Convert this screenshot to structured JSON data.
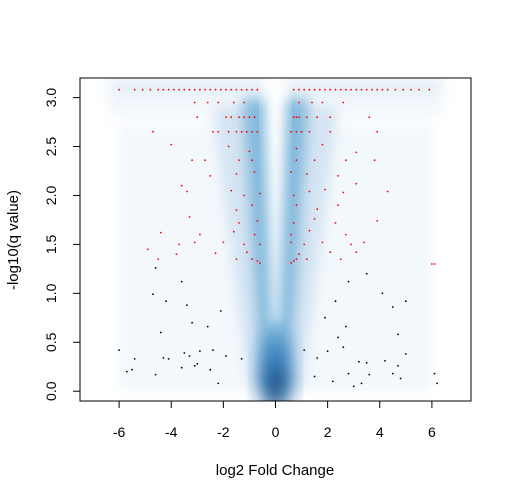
{
  "chart_data": {
    "type": "scatter",
    "title": "",
    "xlabel": "log2 Fold Change",
    "ylabel": "-log10(q value)",
    "xlim": [
      -7.5,
      7.5
    ],
    "ylim": [
      -0.1,
      3.2
    ],
    "xticks": [
      -6,
      -4,
      -2,
      0,
      2,
      4,
      6
    ],
    "xtick_labels": [
      "-6",
      "-4",
      "-2",
      "0",
      "2",
      "4",
      "6"
    ],
    "yticks": [
      0.0,
      0.5,
      1.0,
      1.5,
      2.0,
      2.5,
      3.0
    ],
    "ytick_labels": [
      "0.0",
      "0.5",
      "1.0",
      "1.5",
      "2.0",
      "2.5",
      "3.0"
    ],
    "grid": false,
    "legend": "none",
    "background": "smoothed density of all points (blue), peaked at x=0, y=0",
    "colors": {
      "density_dark": "#08306b",
      "density_light": "#deebf7",
      "significant": "#ff0000",
      "nonsignificant": "#000000"
    },
    "significance_threshold_y": 1.3,
    "series": [
      {
        "color": "#ff0000",
        "points": [
          [
            -6.0,
            3.08
          ],
          [
            -5.4,
            3.08
          ],
          [
            -5.1,
            3.08
          ],
          [
            -4.8,
            3.08
          ],
          [
            -4.5,
            3.08
          ],
          [
            -4.3,
            3.08
          ],
          [
            -4.1,
            3.08
          ],
          [
            -3.9,
            3.08
          ],
          [
            -3.7,
            3.08
          ],
          [
            -3.5,
            3.08
          ],
          [
            -3.3,
            3.08
          ],
          [
            -3.1,
            3.08
          ],
          [
            -2.9,
            3.08
          ],
          [
            -2.7,
            3.08
          ],
          [
            -2.5,
            3.08
          ],
          [
            -2.3,
            3.08
          ],
          [
            -2.1,
            3.08
          ],
          [
            -1.9,
            3.08
          ],
          [
            -1.7,
            3.08
          ],
          [
            -1.5,
            3.08
          ],
          [
            -1.3,
            3.08
          ],
          [
            -1.1,
            3.08
          ],
          [
            -0.9,
            3.08
          ],
          [
            -0.7,
            3.08
          ],
          [
            0.7,
            3.08
          ],
          [
            0.9,
            3.08
          ],
          [
            1.1,
            3.08
          ],
          [
            1.3,
            3.08
          ],
          [
            1.5,
            3.08
          ],
          [
            1.7,
            3.08
          ],
          [
            1.9,
            3.08
          ],
          [
            2.1,
            3.08
          ],
          [
            2.3,
            3.08
          ],
          [
            2.5,
            3.08
          ],
          [
            2.7,
            3.08
          ],
          [
            2.9,
            3.08
          ],
          [
            3.1,
            3.08
          ],
          [
            3.3,
            3.08
          ],
          [
            3.5,
            3.08
          ],
          [
            3.7,
            3.08
          ],
          [
            3.9,
            3.08
          ],
          [
            4.1,
            3.08
          ],
          [
            4.3,
            3.08
          ],
          [
            4.6,
            3.08
          ],
          [
            4.9,
            3.08
          ],
          [
            5.2,
            3.08
          ],
          [
            5.5,
            3.08
          ],
          [
            5.9,
            3.08
          ],
          [
            -3.1,
            2.95
          ],
          [
            -2.6,
            2.95
          ],
          [
            -2.2,
            2.95
          ],
          [
            -1.6,
            2.95
          ],
          [
            -1.2,
            2.95
          ],
          [
            0.9,
            2.95
          ],
          [
            1.4,
            2.95
          ],
          [
            1.8,
            2.95
          ],
          [
            2.6,
            2.95
          ],
          [
            -3.0,
            2.8
          ],
          [
            -1.9,
            2.8
          ],
          [
            -1.7,
            2.8
          ],
          [
            -1.4,
            2.8
          ],
          [
            -1.2,
            2.8
          ],
          [
            -1.0,
            2.8
          ],
          [
            -0.8,
            2.8
          ],
          [
            0.7,
            2.8
          ],
          [
            0.8,
            2.8
          ],
          [
            0.9,
            2.8
          ],
          [
            1.2,
            2.8
          ],
          [
            1.6,
            2.8
          ],
          [
            2.1,
            2.8
          ],
          [
            3.6,
            2.8
          ],
          [
            -4.7,
            2.65
          ],
          [
            -2.4,
            2.65
          ],
          [
            -2.2,
            2.65
          ],
          [
            -1.8,
            2.65
          ],
          [
            -1.5,
            2.65
          ],
          [
            -1.3,
            2.65
          ],
          [
            -1.1,
            2.65
          ],
          [
            -0.9,
            2.65
          ],
          [
            -0.7,
            2.65
          ],
          [
            0.6,
            2.65
          ],
          [
            0.8,
            2.65
          ],
          [
            1.0,
            2.65
          ],
          [
            1.3,
            2.65
          ],
          [
            2.1,
            2.65
          ],
          [
            3.9,
            2.65
          ],
          [
            -4.0,
            2.52
          ],
          [
            -1.8,
            2.5
          ],
          [
            -1.0,
            2.45
          ],
          [
            0.8,
            2.48
          ],
          [
            1.8,
            2.52
          ],
          [
            3.1,
            2.44
          ],
          [
            -3.2,
            2.36
          ],
          [
            -2.7,
            2.36
          ],
          [
            -1.4,
            2.36
          ],
          [
            -0.9,
            2.36
          ],
          [
            0.8,
            2.36
          ],
          [
            1.5,
            2.36
          ],
          [
            2.7,
            2.36
          ],
          [
            3.8,
            2.36
          ],
          [
            -3.6,
            2.1
          ],
          [
            -2.5,
            2.2
          ],
          [
            -1.5,
            2.22
          ],
          [
            -0.8,
            2.24
          ],
          [
            0.6,
            2.24
          ],
          [
            1.2,
            2.22
          ],
          [
            2.4,
            2.2
          ],
          [
            3.1,
            2.12
          ],
          [
            -3.4,
            2.04
          ],
          [
            -1.7,
            2.05
          ],
          [
            -1.2,
            2.0
          ],
          [
            -0.6,
            2.02
          ],
          [
            0.7,
            2.0
          ],
          [
            1.3,
            2.04
          ],
          [
            1.9,
            2.06
          ],
          [
            2.6,
            2.03
          ],
          [
            4.3,
            2.04
          ],
          [
            -1.5,
            1.85
          ],
          [
            -0.9,
            1.9
          ],
          [
            0.8,
            1.9
          ],
          [
            1.6,
            1.86
          ],
          [
            2.4,
            1.9
          ],
          [
            -3.3,
            1.78
          ],
          [
            -1.4,
            1.72
          ],
          [
            -0.7,
            1.74
          ],
          [
            0.7,
            1.72
          ],
          [
            1.5,
            1.76
          ],
          [
            2.3,
            1.72
          ],
          [
            3.9,
            1.74
          ],
          [
            -4.4,
            1.62
          ],
          [
            -2.9,
            1.6
          ],
          [
            -1.6,
            1.63
          ],
          [
            -0.8,
            1.6
          ],
          [
            0.6,
            1.6
          ],
          [
            1.3,
            1.64
          ],
          [
            2.7,
            1.6
          ],
          [
            -3.7,
            1.5
          ],
          [
            -3.1,
            1.52
          ],
          [
            -2.0,
            1.52
          ],
          [
            -1.2,
            1.5
          ],
          [
            -0.6,
            1.5
          ],
          [
            0.6,
            1.52
          ],
          [
            1.1,
            1.5
          ],
          [
            1.8,
            1.52
          ],
          [
            2.9,
            1.5
          ],
          [
            3.4,
            1.52
          ],
          [
            -4.9,
            1.45
          ],
          [
            -3.8,
            1.4
          ],
          [
            -2.3,
            1.41
          ],
          [
            -1.1,
            1.42
          ],
          [
            0.9,
            1.4
          ],
          [
            2.1,
            1.42
          ],
          [
            3.1,
            1.42
          ],
          [
            -4.5,
            1.35
          ],
          [
            -1.5,
            1.35
          ],
          [
            -0.9,
            1.35
          ],
          [
            -0.7,
            1.33
          ],
          [
            -0.6,
            1.31
          ],
          [
            0.6,
            1.31
          ],
          [
            0.7,
            1.33
          ],
          [
            0.8,
            1.35
          ],
          [
            1.2,
            1.35
          ],
          [
            2.5,
            1.35
          ],
          [
            6.0,
            1.3
          ],
          [
            6.1,
            1.3
          ]
        ]
      },
      {
        "color": "#000000",
        "points": [
          [
            -4.6,
            1.26
          ],
          [
            -3.6,
            1.12
          ],
          [
            -4.7,
            0.99
          ],
          [
            -4.2,
            0.92
          ],
          [
            -3.4,
            0.88
          ],
          [
            4.1,
            1.0
          ],
          [
            5.0,
            0.92
          ],
          [
            4.5,
            0.86
          ],
          [
            2.3,
            0.92
          ],
          [
            2.8,
            1.12
          ],
          [
            3.5,
            1.2
          ],
          [
            -3.2,
            0.7
          ],
          [
            -2.6,
            0.66
          ],
          [
            -4.4,
            0.6
          ],
          [
            -2.1,
            0.82
          ],
          [
            1.9,
            0.75
          ],
          [
            2.7,
            0.66
          ],
          [
            2.4,
            0.55
          ],
          [
            4.7,
            0.58
          ],
          [
            -6.0,
            0.42
          ],
          [
            -5.4,
            0.33
          ],
          [
            -4.1,
            0.33
          ],
          [
            -4.3,
            0.34
          ],
          [
            -3.5,
            0.39
          ],
          [
            -3.3,
            0.36
          ],
          [
            -2.9,
            0.41
          ],
          [
            -3.0,
            0.28
          ],
          [
            -2.4,
            0.42
          ],
          [
            -1.9,
            0.36
          ],
          [
            -1.3,
            0.33
          ],
          [
            1.1,
            0.42
          ],
          [
            1.6,
            0.34
          ],
          [
            2.0,
            0.41
          ],
          [
            2.6,
            0.45
          ],
          [
            3.2,
            0.3
          ],
          [
            3.5,
            0.29
          ],
          [
            4.2,
            0.31
          ],
          [
            4.7,
            0.26
          ],
          [
            5.0,
            0.38
          ],
          [
            -5.7,
            0.2
          ],
          [
            -5.5,
            0.22
          ],
          [
            -4.6,
            0.17
          ],
          [
            -3.6,
            0.24
          ],
          [
            -3.1,
            0.26
          ],
          [
            -2.5,
            0.22
          ],
          [
            -2.2,
            0.08
          ],
          [
            1.5,
            0.15
          ],
          [
            2.2,
            0.1
          ],
          [
            2.8,
            0.18
          ],
          [
            3.0,
            0.05
          ],
          [
            3.3,
            0.08
          ],
          [
            3.6,
            0.17
          ],
          [
            4.5,
            0.18
          ],
          [
            4.8,
            0.13
          ],
          [
            6.1,
            0.18
          ],
          [
            6.2,
            0.08
          ]
        ]
      }
    ]
  }
}
